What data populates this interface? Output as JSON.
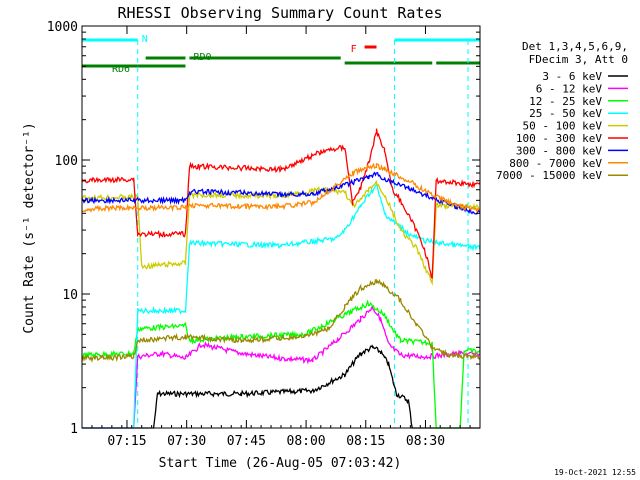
{
  "chart_data": {
    "type": "line",
    "title": "RHESSI Observing Summary Count Rates",
    "xlabel": "Start Time (26-Aug-05 07:03:42)",
    "ylabel": "Count Rate (s⁻¹ detector⁻¹)",
    "y_scale": "log",
    "ylim": [
      1,
      1000
    ],
    "xlim_minutes": [
      0,
      100
    ],
    "x_ticks": [
      {
        "label": "07:15",
        "minute": 11.3
      },
      {
        "label": "07:30",
        "minute": 26.3
      },
      {
        "label": "07:45",
        "minute": 41.3
      },
      {
        "label": "08:00",
        "minute": 56.3
      },
      {
        "label": "08:15",
        "minute": 71.3
      },
      {
        "label": "08:30",
        "minute": 86.3
      }
    ],
    "y_ticks": [
      "1",
      "10",
      "100",
      "1000"
    ],
    "legend_header": [
      "Det 1,3,4,5,6,9,",
      "FDecim 3, Att 0"
    ],
    "legend_position": "right",
    "timestamp": "19-Oct-2021 12:55",
    "series": [
      {
        "name": "3 - 6 keV",
        "color": "#000000",
        "points": [
          [
            0,
            1
          ],
          [
            18,
            1
          ],
          [
            19,
            1.8
          ],
          [
            40,
            1.8
          ],
          [
            58,
            1.9
          ],
          [
            66,
            2.5
          ],
          [
            70,
            3.6
          ],
          [
            73,
            4.0
          ],
          [
            75,
            3.7
          ],
          [
            77,
            3.0
          ],
          [
            79,
            1.8
          ],
          [
            82,
            1.6
          ],
          [
            83,
            1
          ],
          [
            100,
            1
          ]
        ]
      },
      {
        "name": "6 - 12 keV",
        "color": "#ff00ff",
        "points": [
          [
            0,
            1
          ],
          [
            13,
            1
          ],
          [
            14,
            3.4
          ],
          [
            20,
            3.6
          ],
          [
            26,
            3.3
          ],
          [
            30,
            4.2
          ],
          [
            40,
            3.6
          ],
          [
            50,
            3.3
          ],
          [
            58,
            3.2
          ],
          [
            64,
            4.5
          ],
          [
            70,
            6.5
          ],
          [
            73,
            8.0
          ],
          [
            75,
            6.5
          ],
          [
            77,
            4.2
          ],
          [
            80,
            3.5
          ],
          [
            86,
            3.4
          ],
          [
            95,
            3.6
          ],
          [
            100,
            3.5
          ]
        ]
      },
      {
        "name": "12 - 25 keV",
        "color": "#00ff00",
        "points": [
          [
            0,
            3.5
          ],
          [
            13,
            3.6
          ],
          [
            14,
            5.5
          ],
          [
            26,
            5.8
          ],
          [
            27,
            4.5
          ],
          [
            40,
            4.8
          ],
          [
            56,
            5.0
          ],
          [
            66,
            7.0
          ],
          [
            72,
            8.5
          ],
          [
            76,
            7.0
          ],
          [
            78,
            5.5
          ],
          [
            80,
            4.5
          ],
          [
            88,
            4.3
          ],
          [
            89,
            1
          ],
          [
            95,
            1
          ],
          [
            96,
            3.8
          ],
          [
            100,
            3.7
          ]
        ]
      },
      {
        "name": "25 - 50 keV",
        "color": "#00ffff",
        "points": [
          [
            0,
            1
          ],
          [
            13,
            1
          ],
          [
            14,
            7.5
          ],
          [
            26,
            7.5
          ],
          [
            27,
            24
          ],
          [
            50,
            23
          ],
          [
            64,
            26
          ],
          [
            66,
            30
          ],
          [
            70,
            45
          ],
          [
            72,
            55
          ],
          [
            74,
            65
          ],
          [
            76,
            40
          ],
          [
            78,
            35
          ],
          [
            80,
            32
          ],
          [
            82,
            28
          ],
          [
            86,
            25
          ],
          [
            90,
            24
          ],
          [
            100,
            22
          ]
        ]
      },
      {
        "name": "50 - 100 keV",
        "color": "#cccc00",
        "points": [
          [
            0,
            52
          ],
          [
            14,
            53
          ],
          [
            15,
            16
          ],
          [
            26,
            17
          ],
          [
            27,
            55
          ],
          [
            50,
            54
          ],
          [
            60,
            60
          ],
          [
            66,
            58
          ],
          [
            68,
            45
          ],
          [
            70,
            50
          ],
          [
            72,
            60
          ],
          [
            74,
            68
          ],
          [
            76,
            55
          ],
          [
            80,
            30
          ],
          [
            84,
            22
          ],
          [
            87,
            14
          ],
          [
            88,
            12
          ],
          [
            89,
            46
          ],
          [
            100,
            44
          ]
        ]
      },
      {
        "name": "100 - 300 keV",
        "color": "#ff0000",
        "points": [
          [
            0,
            70
          ],
          [
            13,
            72
          ],
          [
            14,
            28
          ],
          [
            26,
            28
          ],
          [
            27,
            90
          ],
          [
            50,
            85
          ],
          [
            60,
            115
          ],
          [
            66,
            125
          ],
          [
            68,
            48
          ],
          [
            70,
            62
          ],
          [
            72,
            95
          ],
          [
            74,
            165
          ],
          [
            76,
            120
          ],
          [
            78,
            60
          ],
          [
            80,
            50
          ],
          [
            84,
            30
          ],
          [
            86,
            22
          ],
          [
            88,
            13
          ],
          [
            89,
            70
          ],
          [
            100,
            65
          ]
        ]
      },
      {
        "name": "300 - 800 keV",
        "color": "#0000ff",
        "points": [
          [
            0,
            50
          ],
          [
            13,
            50
          ],
          [
            26,
            50
          ],
          [
            27,
            58
          ],
          [
            40,
            57
          ],
          [
            50,
            55
          ],
          [
            58,
            56
          ],
          [
            64,
            62
          ],
          [
            68,
            68
          ],
          [
            72,
            75
          ],
          [
            74,
            78
          ],
          [
            76,
            72
          ],
          [
            82,
            62
          ],
          [
            88,
            52
          ],
          [
            94,
            45
          ],
          [
            100,
            40
          ]
        ]
      },
      {
        "name": "800 - 7000 keV",
        "color": "#ff8800",
        "points": [
          [
            0,
            43
          ],
          [
            13,
            44
          ],
          [
            26,
            44
          ],
          [
            27,
            46
          ],
          [
            40,
            45
          ],
          [
            50,
            45
          ],
          [
            58,
            48
          ],
          [
            64,
            65
          ],
          [
            68,
            80
          ],
          [
            72,
            88
          ],
          [
            74,
            90
          ],
          [
            76,
            85
          ],
          [
            82,
            70
          ],
          [
            88,
            55
          ],
          [
            94,
            46
          ],
          [
            100,
            42
          ]
        ]
      },
      {
        "name": "7000 - 15000 keV",
        "color": "#998800",
        "points": [
          [
            0,
            3.3
          ],
          [
            13,
            3.4
          ],
          [
            14,
            4.5
          ],
          [
            26,
            4.8
          ],
          [
            40,
            4.5
          ],
          [
            56,
            4.8
          ],
          [
            62,
            5.5
          ],
          [
            66,
            8.0
          ],
          [
            70,
            11
          ],
          [
            74,
            12.5
          ],
          [
            76,
            11.5
          ],
          [
            80,
            9
          ],
          [
            84,
            6
          ],
          [
            88,
            4.0
          ],
          [
            92,
            3.5
          ],
          [
            100,
            3.4
          ]
        ]
      }
    ],
    "flag_bars": [
      {
        "label": "N",
        "color": "#00ffff",
        "segments": [
          [
            0,
            14
          ]
        ]
      },
      {
        "label": "",
        "color": "#00ffff",
        "segments": [
          [
            78.5,
            100
          ]
        ]
      },
      {
        "label": "RD0",
        "color": "#008000",
        "segments": [
          [
            16,
            26
          ],
          [
            27,
            65
          ]
        ]
      },
      {
        "label": "RD6",
        "color": "#008000",
        "segments": [
          [
            0,
            14
          ],
          [
            14,
            26
          ]
        ]
      },
      {
        "label": "",
        "color": "#008000",
        "segments": [
          [
            66,
            88
          ],
          [
            89,
            100
          ]
        ]
      },
      {
        "label": "F",
        "color": "#ff0000",
        "segments": [
          [
            71,
            74
          ]
        ]
      }
    ]
  }
}
